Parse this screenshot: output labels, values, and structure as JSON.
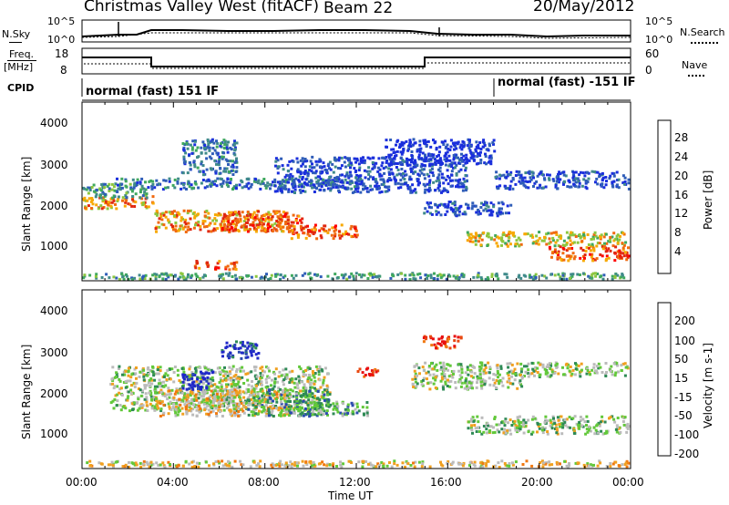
{
  "header": {
    "station": "Christmas Valley West (fitACF)",
    "beam": "Beam 22",
    "date": "20/May/2012"
  },
  "top_panels": {
    "nsky_label": "N.Sky",
    "nsearch_label": "N.Search",
    "noise_ticks": [
      "10^5",
      "10^0"
    ],
    "freq_label_1": "Freq.",
    "freq_label_2": "[MHz]",
    "freq_ticks": [
      "18",
      "8"
    ],
    "nave_label": "Nave",
    "nave_ticks": [
      "60",
      "0"
    ],
    "cpid_label": "CPID",
    "cpid_segments": [
      {
        "label": "normal (fast) 151 IF",
        "start_hour": 0
      },
      {
        "label": "normal (fast) -151 IF",
        "start_hour": 18
      }
    ]
  },
  "chart_data": [
    {
      "type": "heatmap",
      "name": "power",
      "ylabel": "Slant Range [km]",
      "y_ticks": [
        "1000",
        "2000",
        "3000",
        "4000"
      ],
      "ylim": [
        200,
        4600
      ],
      "colorbar_label": "Power [dB]",
      "colorbar_ticks": [
        "4",
        "8",
        "12",
        "16",
        "20",
        "24",
        "28"
      ],
      "colorbar_range": [
        0,
        32
      ],
      "colors": [
        "#1a2fdc",
        "#2f5db8",
        "#3f8a8a",
        "#3fa85e",
        "#8dc63f",
        "#f7a800",
        "#f06a10",
        "#e02810",
        "#ff0000"
      ]
    },
    {
      "type": "heatmap",
      "name": "velocity",
      "ylabel": "Slant Range [km]",
      "y_ticks": [
        "1000",
        "2000",
        "3000",
        "4000"
      ],
      "ylim": [
        200,
        4600
      ],
      "colorbar_label": "Velocity [m s-1]",
      "colorbar_ticks": [
        "200",
        "100",
        "50",
        "15",
        "-15",
        "-50",
        "-100",
        "-200"
      ],
      "colors": [
        "#2028c8",
        "#2a4ab0",
        "#2e8a55",
        "#62c83a",
        "#bbbbbb",
        "#f0a020",
        "#f07810",
        "#e84810",
        "#e81010"
      ]
    }
  ],
  "x_axis": {
    "label": "Time UT",
    "ticks": [
      "00:00",
      "04:00",
      "08:00",
      "12:00",
      "16:00",
      "20:00",
      "00:00"
    ]
  }
}
